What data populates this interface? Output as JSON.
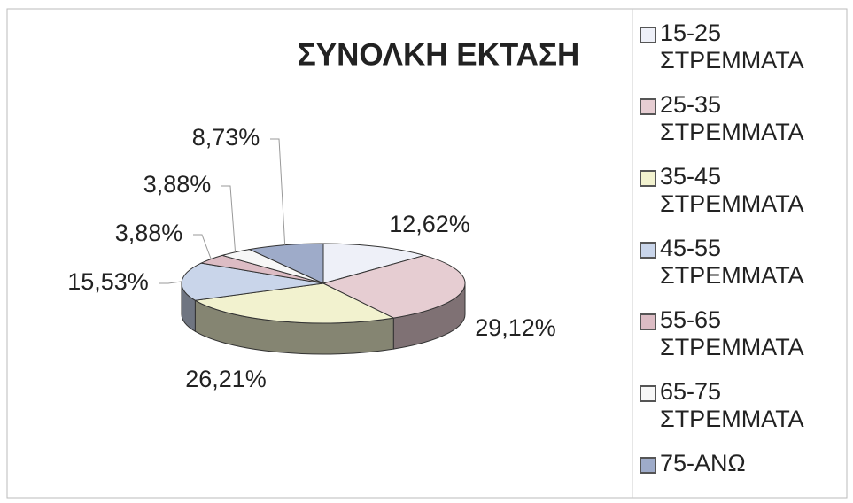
{
  "chart_data": {
    "type": "pie",
    "title": "ΣΥΝΟΛΚΗ ΕΚΤΑΣΗ",
    "categories": [
      "15-25 ΣΤΡΕΜΜΑΤΑ",
      "25-35 ΣΤΡΕΜΜΑΤΑ",
      "35-45 ΣΤΡΕΜΜΑΤΑ",
      "45-55 ΣΤΡΕΜΜΑΤΑ",
      "55-65 ΣΤΡΕΜΜΑΤΑ",
      "65-75 ΣΤΡΕΜΜΑΤΑ",
      "75-ΑΝΩ"
    ],
    "values": [
      12.62,
      29.12,
      26.21,
      15.53,
      3.88,
      3.88,
      8.73
    ],
    "value_labels": [
      "12,62%",
      "29,12%",
      "26,21%",
      "15,53%",
      "3,88%",
      "3,88%",
      "8,73%"
    ],
    "colors": [
      "#eef0f8",
      "#e6cdd2",
      "#f2f2cf",
      "#c9d5ea",
      "#dcbcc4",
      "#f7f7f7",
      "#9eabc9"
    ],
    "legend": "right"
  }
}
